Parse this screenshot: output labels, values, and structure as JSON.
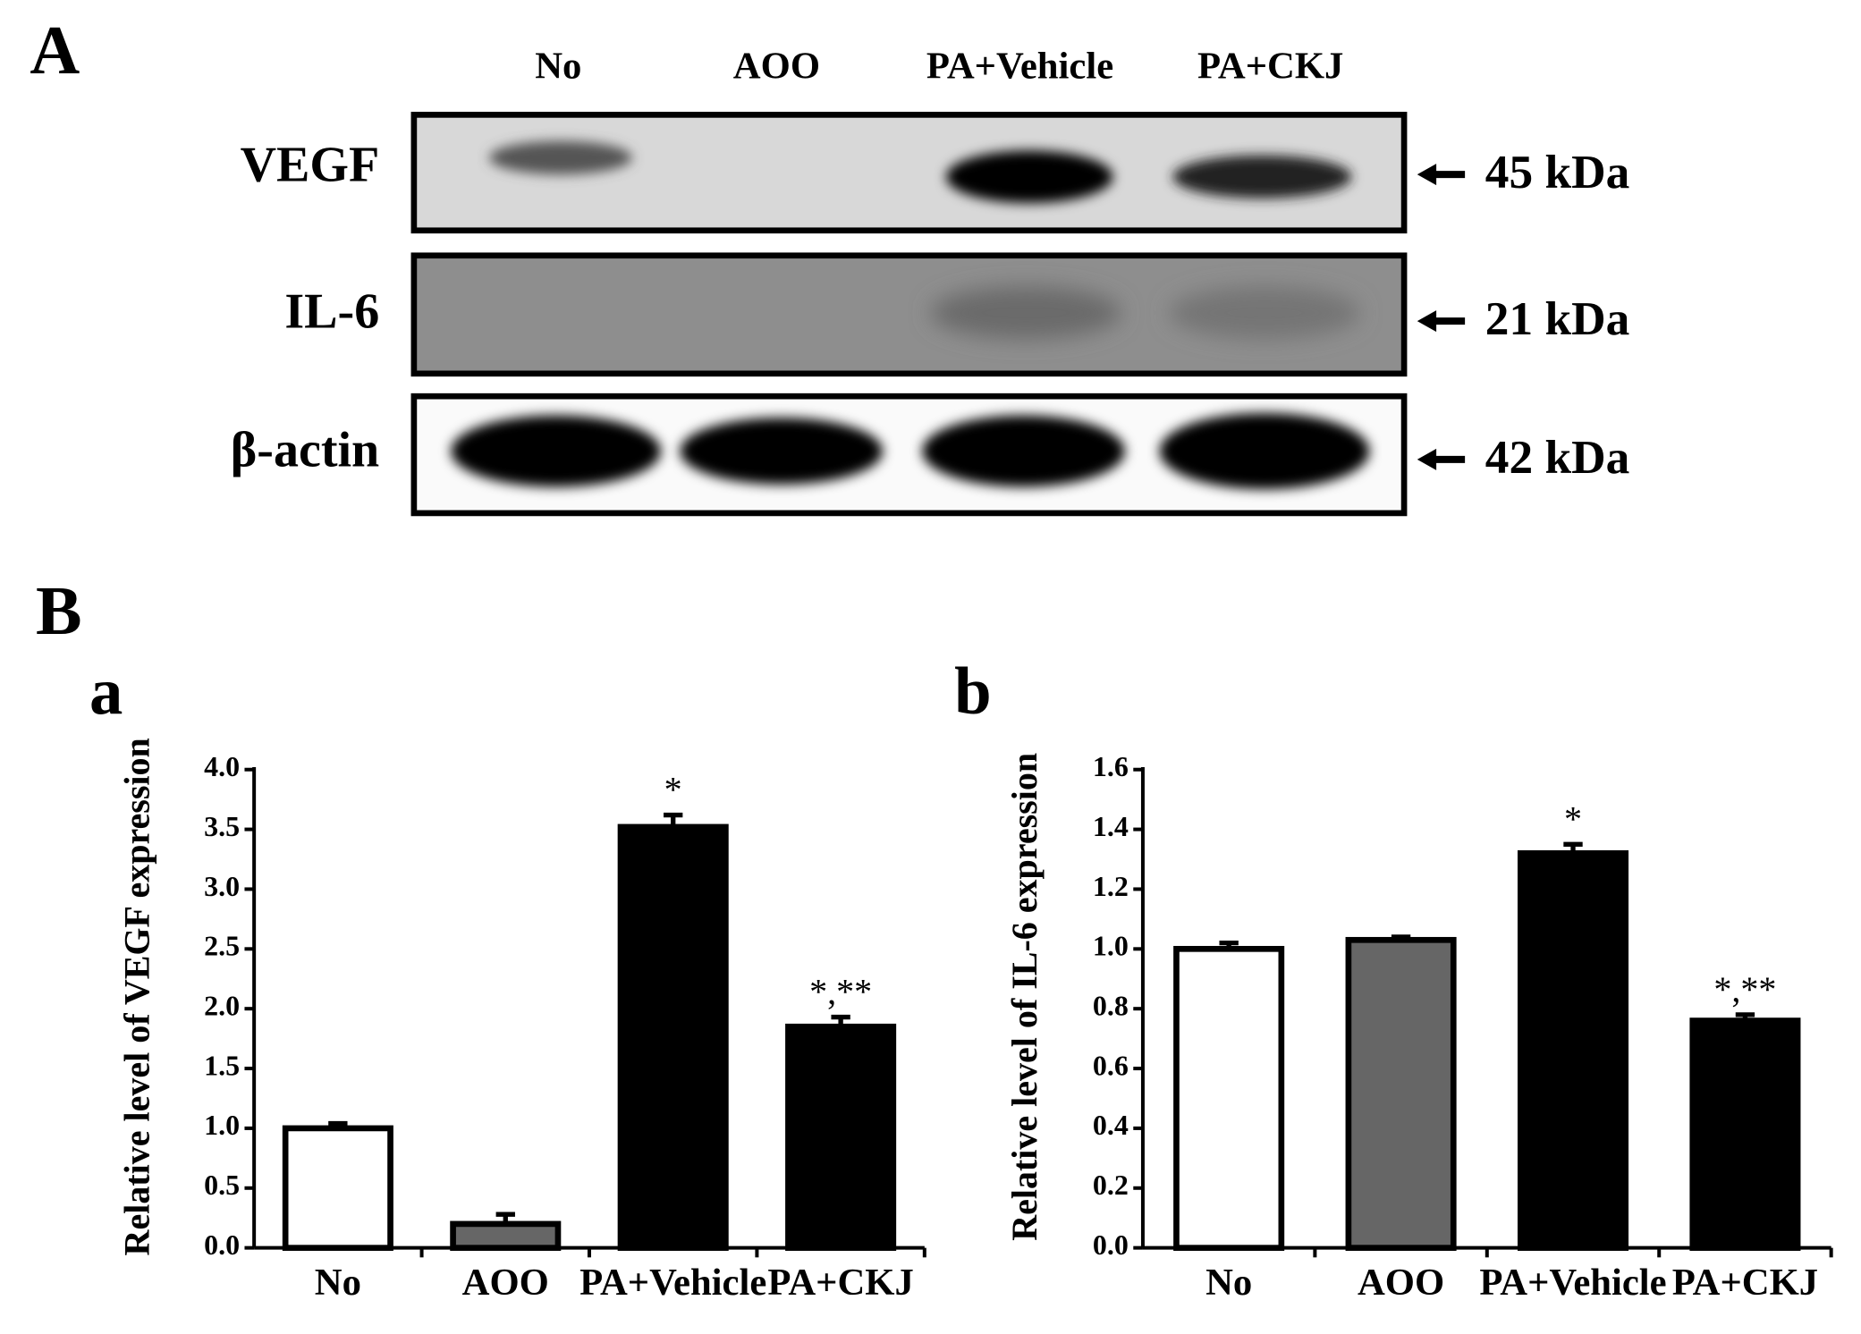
{
  "blot": {
    "panel_label": "A",
    "lanes": [
      "No",
      "AOO",
      "PA+Vehicle",
      "PA+CKJ"
    ],
    "rows": [
      {
        "protein": "VEGF",
        "size": "45 kDa"
      },
      {
        "protein": "IL-6",
        "size": "21 kDa"
      },
      {
        "protein": "β-actin",
        "size": "42 kDa"
      }
    ]
  },
  "section_label": "B",
  "chart_data": [
    {
      "type": "bar",
      "panel_label": "a",
      "y_label": "Relative level of VEGF expression",
      "categories": [
        "No",
        "AOO",
        "PA+Vehicle",
        "PA+CKJ"
      ],
      "values": [
        1.0,
        0.2,
        3.52,
        1.85
      ],
      "errors": [
        0.04,
        0.08,
        0.1,
        0.08
      ],
      "colors": [
        "#ffffff",
        "#666666",
        "#000000",
        "#000000"
      ],
      "annotations": [
        {
          "category": "PA+Vehicle",
          "text": "*"
        },
        {
          "category": "PA+CKJ",
          "text": "*,**"
        }
      ],
      "ylim": [
        0,
        4
      ],
      "yticks": [
        {
          "value": 0,
          "label": "0.0"
        },
        0.5,
        {
          "value": 1,
          "label": "1.0"
        },
        1.5,
        {
          "value": 2,
          "label": "2.0"
        },
        2.5,
        {
          "value": 3,
          "label": "3.0"
        },
        3.5,
        {
          "value": 4,
          "label": "4.0"
        }
      ],
      "grid": false
    },
    {
      "type": "bar",
      "panel_label": "b",
      "y_label": "Relative level of IL-6 expression",
      "categories": [
        "No",
        "AOO",
        "PA+Vehicle",
        "PA+CKJ"
      ],
      "values": [
        1.0,
        1.03,
        1.32,
        0.76
      ],
      "errors": [
        0.02,
        0.01,
        0.03,
        0.02
      ],
      "colors": [
        "#ffffff",
        "#666666",
        "#000000",
        "#000000"
      ],
      "annotations": [
        {
          "category": "PA+Vehicle",
          "text": "*"
        },
        {
          "category": "PA+CKJ",
          "text": "*,**"
        }
      ],
      "ylim": [
        0,
        1.6
      ],
      "yticks": [
        {
          "value": 0,
          "label": "0.0"
        },
        0.2,
        0.4,
        0.6,
        0.8,
        {
          "value": 1,
          "label": "1.0"
        },
        1.2,
        1.4,
        1.6
      ],
      "grid": false
    }
  ]
}
